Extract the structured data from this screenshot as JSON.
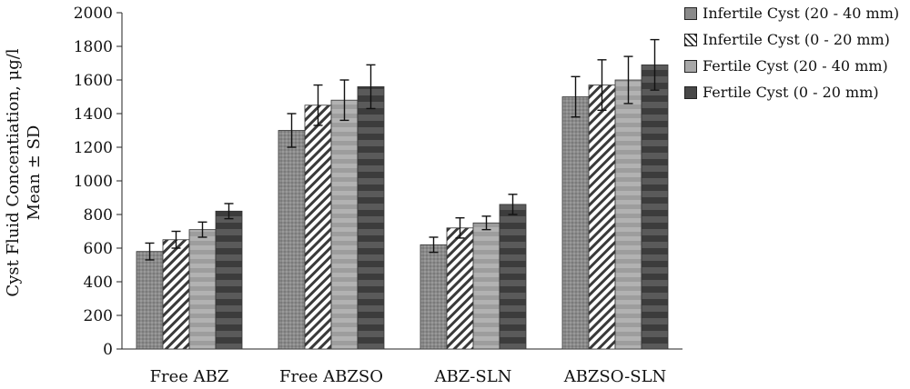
{
  "chart_data": {
    "type": "bar",
    "ylabel_line1": "Cyst Fluid Concentiation, μg/l",
    "ylabel_line2": "Mean ± SD",
    "ylim": [
      0,
      2000
    ],
    "yticks": [
      "0",
      "200",
      "400",
      "600",
      "800",
      "1000",
      "1200",
      "1400",
      "1600",
      "1800",
      "2000"
    ],
    "categories": [
      "Free ABZ",
      "Free ABZSO",
      "ABZ-SLN",
      "ABZSO-SLN"
    ],
    "legend_position": "top-right",
    "grid": false,
    "series": [
      {
        "name": "Infertile Cyst (20 - 40 mm)",
        "values": [
          580,
          1300,
          620,
          1500
        ],
        "errors": [
          50,
          100,
          45,
          120
        ],
        "pattern": "dots-mid-gray"
      },
      {
        "name": "Infertile Cyst (0 - 20 mm)",
        "values": [
          650,
          1450,
          720,
          1570
        ],
        "errors": [
          50,
          120,
          60,
          150
        ],
        "pattern": "diagonal-hatch"
      },
      {
        "name": "Fertile Cyst (20 - 40 mm)",
        "values": [
          710,
          1480,
          750,
          1600
        ],
        "errors": [
          45,
          120,
          40,
          140
        ],
        "pattern": "light-gray-bands"
      },
      {
        "name": "Fertile Cyst (0 - 20 mm)",
        "values": [
          820,
          1560,
          860,
          1690
        ],
        "errors": [
          45,
          130,
          60,
          150
        ],
        "pattern": "dark-stripes"
      }
    ]
  }
}
